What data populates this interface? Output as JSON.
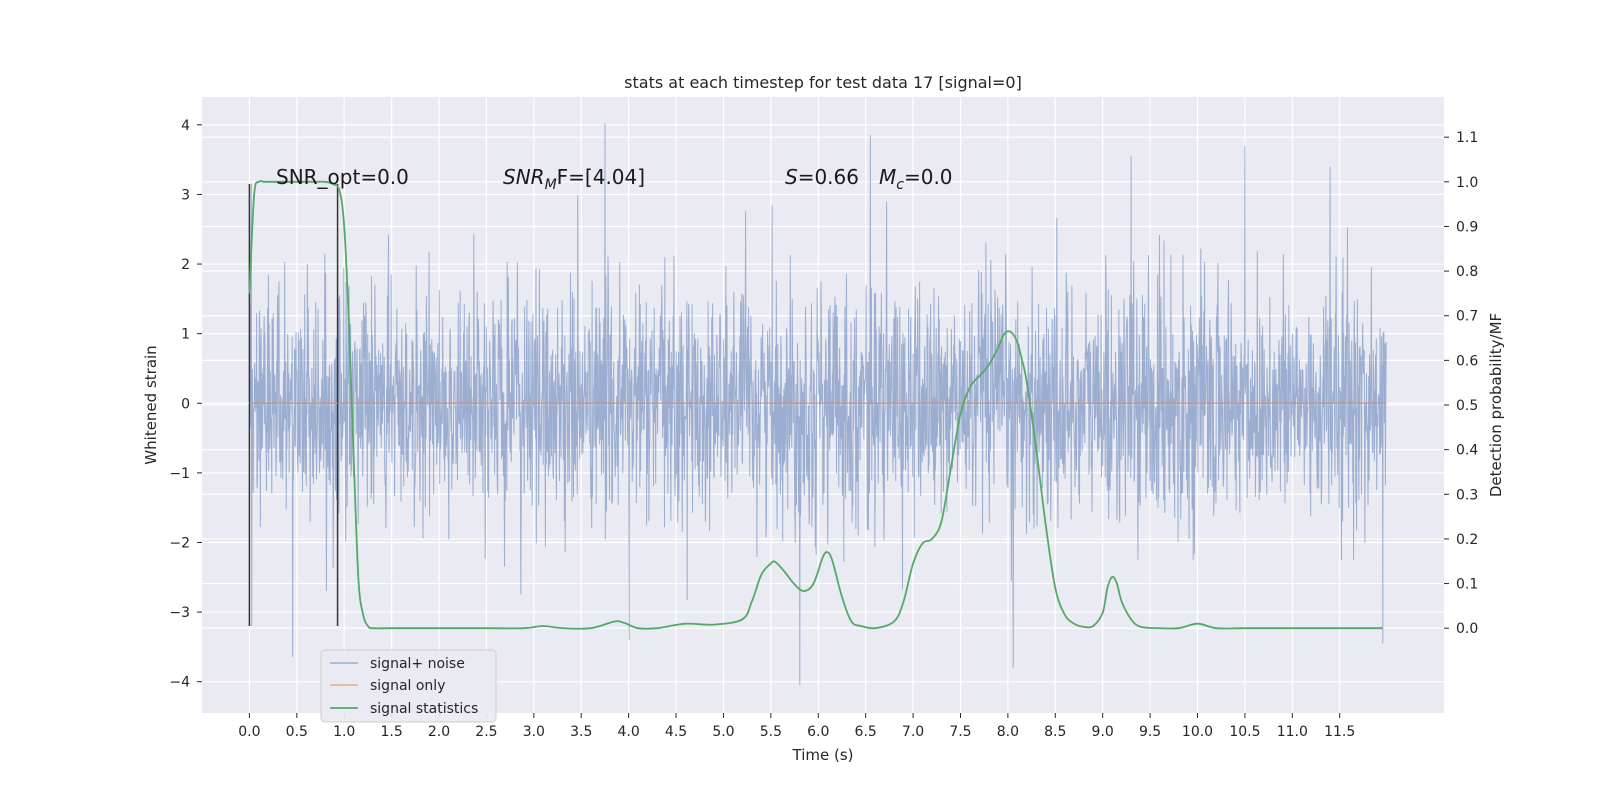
{
  "chart_data": {
    "type": "line",
    "title": "stats at each timestep for test data 17 [signal=0]",
    "xlabel": "Time (s)",
    "ylabel": "Whitened strain",
    "y2label": "Detection probability/MF",
    "xlim": [
      -0.5,
      12.6
    ],
    "ylim": [
      -4.45,
      4.4
    ],
    "y2lim": [
      -0.19,
      1.19
    ],
    "x_ticks": [
      0.0,
      0.5,
      1.0,
      1.5,
      2.0,
      2.5,
      3.0,
      3.5,
      4.0,
      4.5,
      5.0,
      5.5,
      6.0,
      6.5,
      7.0,
      7.5,
      8.0,
      8.5,
      9.0,
      9.5,
      10.0,
      10.5,
      11.0,
      11.5
    ],
    "x_tick_labels": [
      "0.0",
      "0.5",
      "1.0",
      "1.5",
      "2.0",
      "2.5",
      "3.0",
      "3.5",
      "4.0",
      "4.5",
      "5.0",
      "5.5",
      "6.0",
      "6.5",
      "7.0",
      "7.5",
      "8.0",
      "8.5",
      "9.0",
      "9.5",
      "10.0",
      "10.5",
      "11.0",
      "11.5"
    ],
    "y_ticks": [
      -4,
      -3,
      -2,
      -1,
      0,
      1,
      2,
      3,
      4
    ],
    "y_tick_labels": [
      "−4",
      "−3",
      "−2",
      "−1",
      "0",
      "1",
      "2",
      "3",
      "4"
    ],
    "y2_ticks": [
      0.0,
      0.1,
      0.2,
      0.3,
      0.4,
      0.5,
      0.6,
      0.7,
      0.8,
      0.9,
      1.0,
      1.1
    ],
    "y2_tick_labels": [
      "0.0",
      "0.1",
      "0.2",
      "0.3",
      "0.4",
      "0.5",
      "0.6",
      "0.7",
      "0.8",
      "0.9",
      "1.0",
      "1.1"
    ],
    "grid": true,
    "legend_position": "lower-left",
    "background": "#eaeaf2",
    "series": [
      {
        "name": "signal+ noise",
        "axis": "left",
        "color": "#4c72b0",
        "x_range": [
          0.0,
          11.99
        ],
        "amplitude_sigma": 0.85,
        "peaks": [
          {
            "x": 0.02,
            "y": 3.15
          },
          {
            "x": 0.02,
            "y": -3.2
          },
          {
            "x": 3.75,
            "y": 4.02
          },
          {
            "x": 6.55,
            "y": 3.85
          },
          {
            "x": 10.5,
            "y": 3.7
          },
          {
            "x": 11.4,
            "y": 3.4
          },
          {
            "x": 5.8,
            "y": -4.05
          },
          {
            "x": 8.05,
            "y": -3.8
          },
          {
            "x": 0.45,
            "y": -3.65
          },
          {
            "x": 11.95,
            "y": -3.45
          },
          {
            "x": 4.0,
            "y": -3.4
          },
          {
            "x": 9.3,
            "y": 3.55
          }
        ]
      },
      {
        "name": "signal only",
        "axis": "left",
        "color": "#dd8452",
        "x": [
          0.0,
          11.99
        ],
        "y": [
          0.0,
          0.0
        ]
      },
      {
        "name": "signal statistics",
        "axis": "right",
        "color": "#55a868",
        "x": [
          0.0,
          0.05,
          0.1,
          0.15,
          0.2,
          0.3,
          0.4,
          0.5,
          0.6,
          0.7,
          0.8,
          0.88,
          0.95,
          1.0,
          1.05,
          1.1,
          1.15,
          1.2,
          1.25,
          1.3,
          1.5,
          2.0,
          2.5,
          2.9,
          3.1,
          3.3,
          3.6,
          3.85,
          3.95,
          4.1,
          4.3,
          4.6,
          4.9,
          5.2,
          5.3,
          5.4,
          5.5,
          5.55,
          5.65,
          5.75,
          5.85,
          5.95,
          6.05,
          6.1,
          6.15,
          6.25,
          6.35,
          6.45,
          6.6,
          6.8,
          6.9,
          7.0,
          7.1,
          7.2,
          7.3,
          7.4,
          7.5,
          7.6,
          7.7,
          7.8,
          7.9,
          7.95,
          8.0,
          8.05,
          8.1,
          8.15,
          8.2,
          8.3,
          8.4,
          8.5,
          8.6,
          8.7,
          8.8,
          8.9,
          9.0,
          9.05,
          9.1,
          9.15,
          9.2,
          9.3,
          9.4,
          9.6,
          9.8,
          10.0,
          10.2,
          10.5,
          11.0,
          11.3,
          11.6,
          11.95
        ],
        "y": [
          0.75,
          0.97,
          1.0,
          1.0,
          1.0,
          1.0,
          1.0,
          1.0,
          1.0,
          1.0,
          1.0,
          0.995,
          0.98,
          0.9,
          0.68,
          0.38,
          0.11,
          0.03,
          0.005,
          0.0,
          0.0,
          0.0,
          0.0,
          0.0,
          0.005,
          0.0,
          0.0,
          0.015,
          0.012,
          0.0,
          0.0,
          0.01,
          0.008,
          0.02,
          0.06,
          0.12,
          0.145,
          0.148,
          0.125,
          0.098,
          0.083,
          0.1,
          0.16,
          0.17,
          0.15,
          0.07,
          0.015,
          0.005,
          0.0,
          0.015,
          0.06,
          0.145,
          0.19,
          0.2,
          0.24,
          0.36,
          0.48,
          0.54,
          0.565,
          0.59,
          0.63,
          0.655,
          0.665,
          0.66,
          0.64,
          0.6,
          0.55,
          0.4,
          0.23,
          0.09,
          0.03,
          0.01,
          0.003,
          0.005,
          0.035,
          0.09,
          0.115,
          0.1,
          0.06,
          0.02,
          0.003,
          0.0,
          0.0,
          0.01,
          0.0,
          0.0,
          0.0,
          0.0,
          0.0,
          0.0
        ]
      }
    ],
    "vlines": [
      {
        "x": 0.0,
        "y": [
          -3.2,
          3.15
        ],
        "color": "#333333"
      },
      {
        "x": 0.93,
        "y": [
          -3.2,
          3.15
        ],
        "color": "#333333"
      }
    ],
    "annotations": {
      "snr_opt": "SNR_opt=0.0",
      "snr_mf_label": "SNR",
      "snr_mf_sub": "M",
      "snr_mf_suffix": "F=[4.04]",
      "s_label": "S",
      "s_value": "=0.66",
      "mc_label": "M",
      "mc_sub": "c",
      "mc_value": "=0.0"
    }
  }
}
